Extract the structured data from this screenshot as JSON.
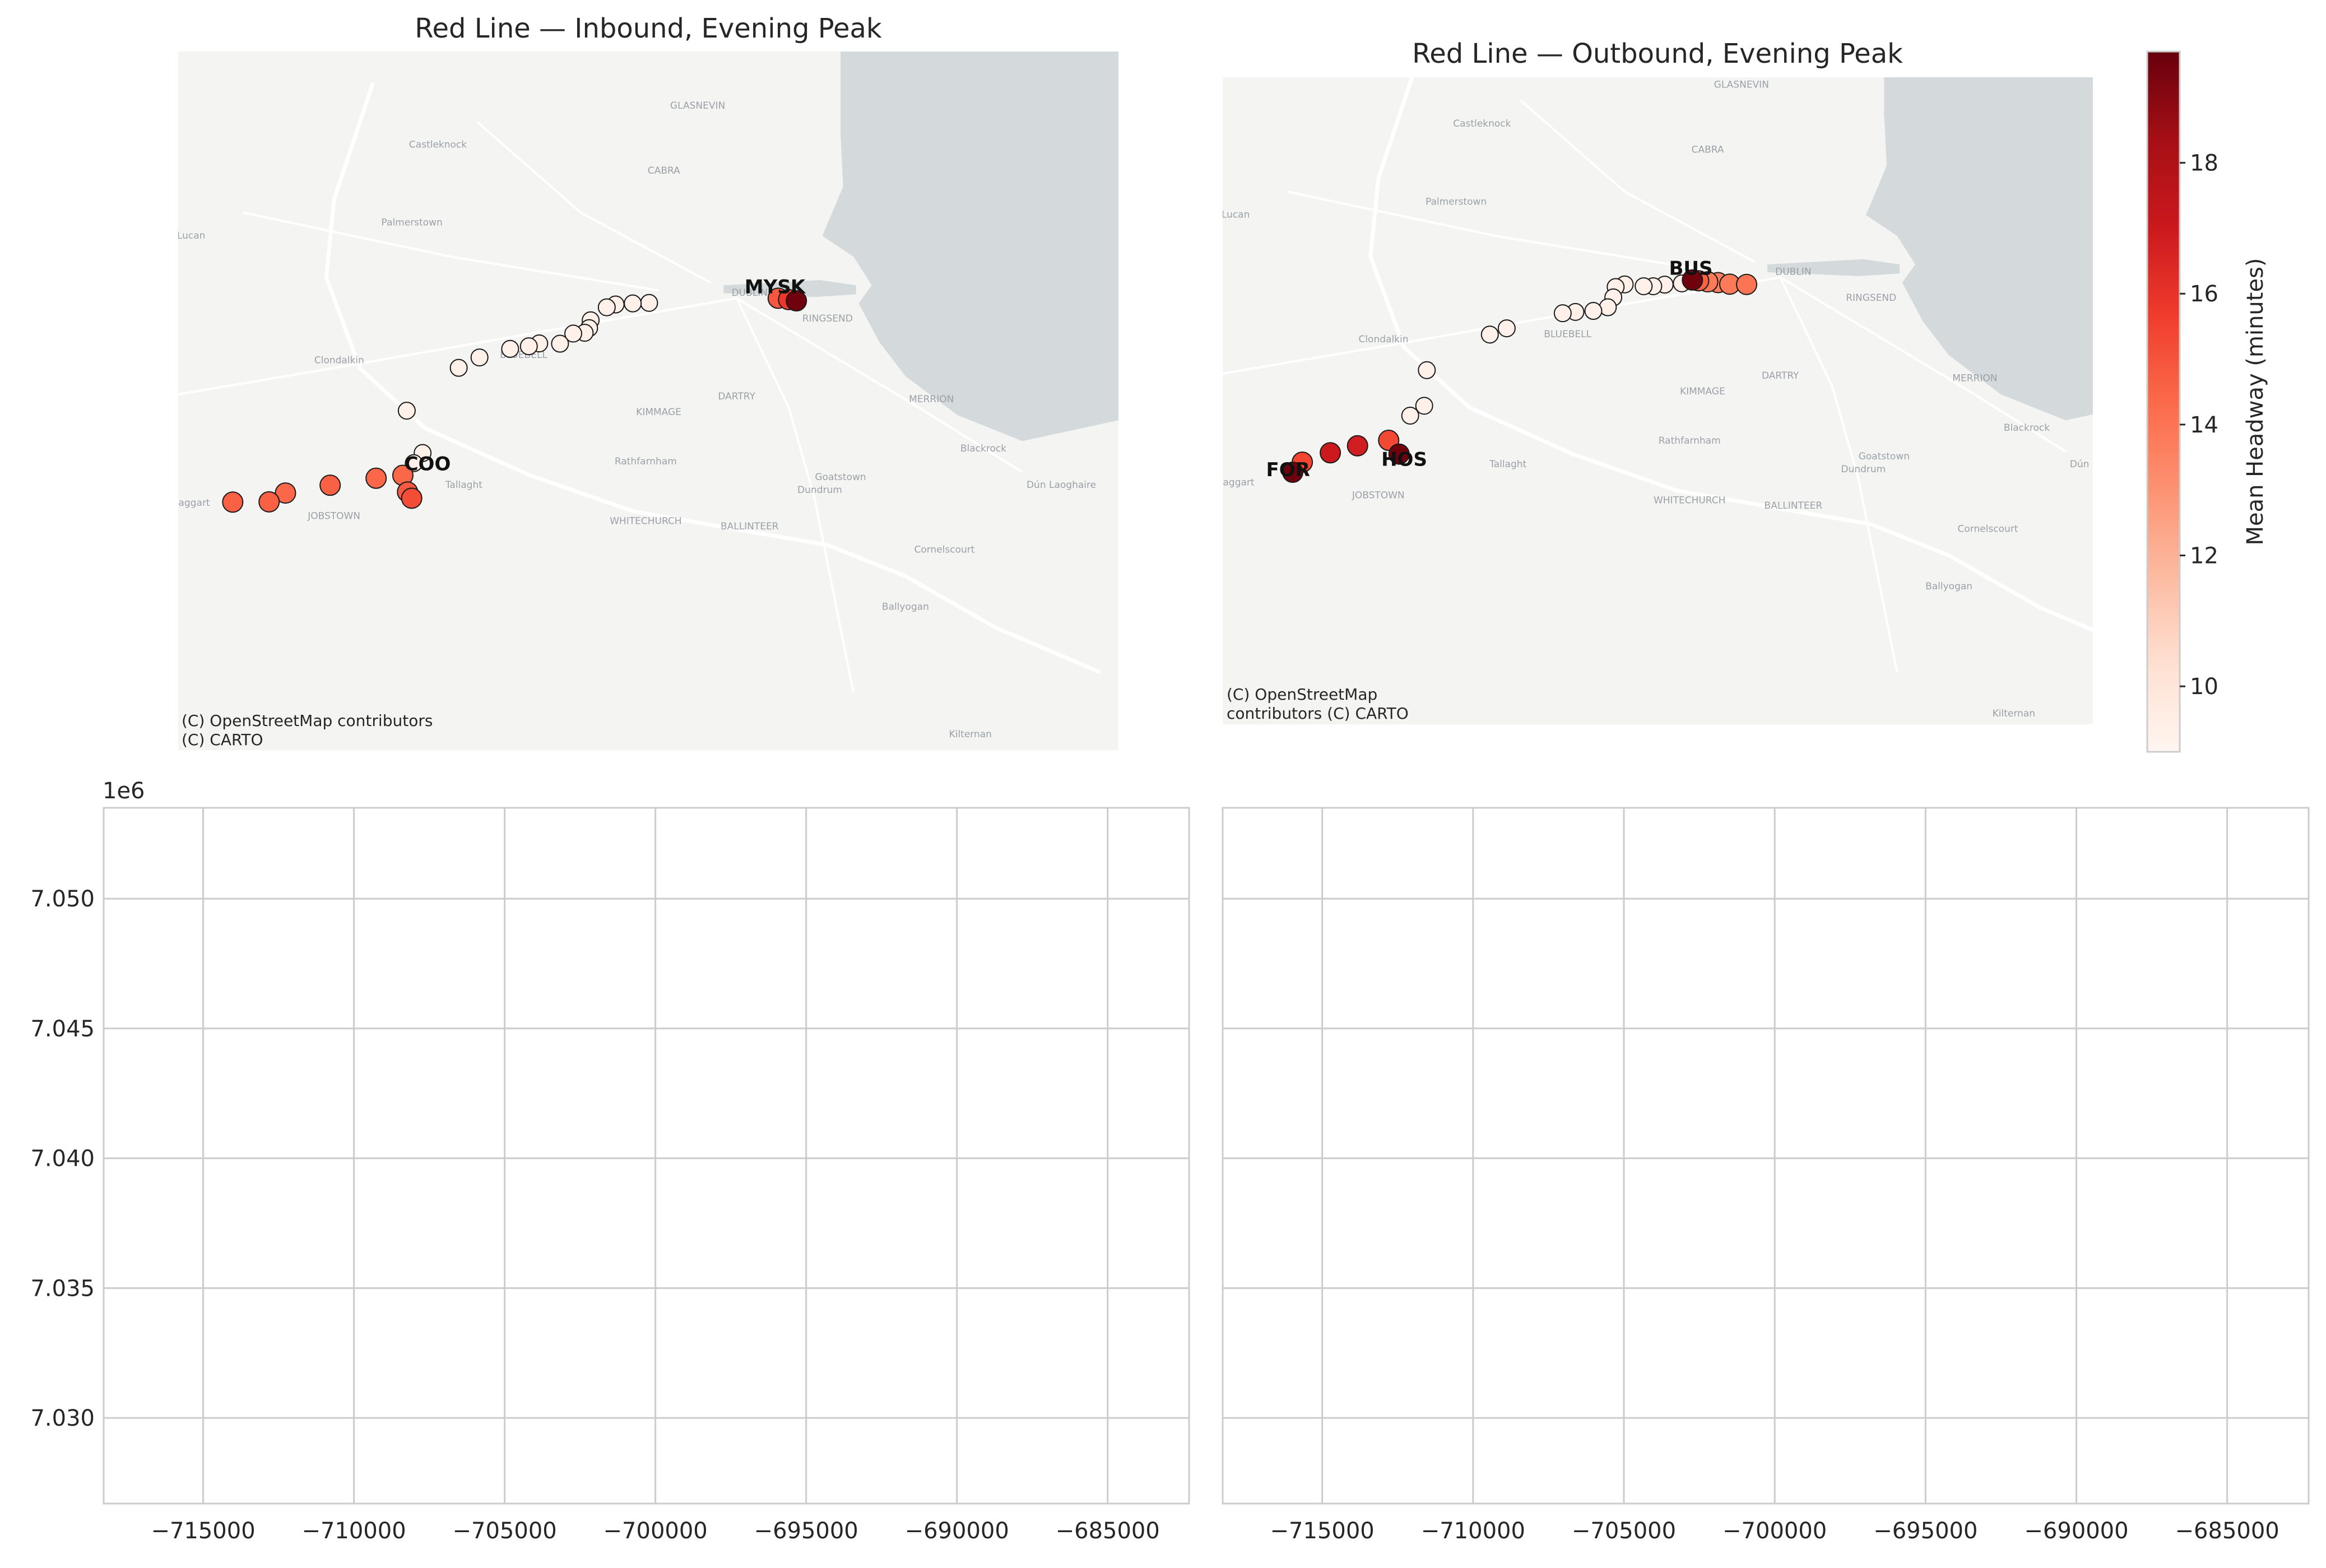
{
  "colors": {
    "map_bg": "#f4f5f3",
    "water": "#d4d9dc",
    "road": "#ffffff",
    "grid": "#cccccc",
    "headway_low": "#fff5f0",
    "headway_high": "#67000d"
  },
  "basemap": {
    "places": [
      "GLASNEVIN",
      "Castleknock",
      "CABRA",
      "Palmerstown",
      "Lucan",
      "DUBLIN",
      "RINGSEND",
      "Clondalkin",
      "KIMMAGE",
      "DARTRY",
      "MERRION",
      "BLUEBELL",
      "Rathfarnham",
      "Blackrock",
      "Goatstown",
      "Dún Laoghaire",
      "Tallaght",
      "Dundrum",
      "Saggart",
      "JOBSTOWN",
      "WHITECHURCH",
      "BALLINTEER",
      "Cornelscourt",
      "Ballyogan",
      "Kilternan"
    ]
  },
  "chart_data": [
    {
      "type": "scatter",
      "title": "Red Line — Inbound, Evening Peak",
      "attribution": [
        "(C) OpenStreetMap contributors",
        "(C) CARTO"
      ],
      "colorscale": "Reds",
      "labels": [
        {
          "text": "MYS",
          "x": -695800,
          "y": 7045390
        },
        {
          "text": "K",
          "x": -694640,
          "y": 7045390
        },
        {
          "text": "COO",
          "x": -708900,
          "y": 7038580
        }
      ],
      "points": [
        {
          "x": -700370,
          "y": 7045020,
          "headway": 9.3
        },
        {
          "x": -701000,
          "y": 7045000,
          "headway": 9.3
        },
        {
          "x": -701660,
          "y": 7044960,
          "headway": 9.3
        },
        {
          "x": -702000,
          "y": 7044850,
          "headway": 9.3
        },
        {
          "x": -702620,
          "y": 7044350,
          "headway": 9.3
        },
        {
          "x": -702680,
          "y": 7044050,
          "headway": 9.3
        },
        {
          "x": -702850,
          "y": 7043870,
          "headway": 9.3
        },
        {
          "x": -703290,
          "y": 7043840,
          "headway": 9.3
        },
        {
          "x": -703800,
          "y": 7043450,
          "headway": 9.3
        },
        {
          "x": -704600,
          "y": 7043460,
          "headway": 9.3
        },
        {
          "x": -705000,
          "y": 7043350,
          "headway": 9.3
        },
        {
          "x": -705720,
          "y": 7043250,
          "headway": 9.3
        },
        {
          "x": -706900,
          "y": 7042920,
          "headway": 9.3
        },
        {
          "x": -707700,
          "y": 7042520,
          "headway": 9.3
        },
        {
          "x": -709700,
          "y": 7040870,
          "headway": 9.3
        },
        {
          "x": -709090,
          "y": 7039240,
          "headway": 9.3
        },
        {
          "x": -709430,
          "y": 7038850,
          "headway": 9.3
        },
        {
          "x": -709850,
          "y": 7038380,
          "headway": 14.4
        },
        {
          "x": -710880,
          "y": 7038270,
          "headway": 14.4
        },
        {
          "x": -712650,
          "y": 7038000,
          "headway": 14.6
        },
        {
          "x": -714370,
          "y": 7037700,
          "headway": 14.4
        },
        {
          "x": -715000,
          "y": 7037360,
          "headway": 14.6
        },
        {
          "x": -716400,
          "y": 7037350,
          "headway": 14.6
        },
        {
          "x": -709670,
          "y": 7037740,
          "headway": 14.8
        },
        {
          "x": -709510,
          "y": 7037500,
          "headway": 15.2
        },
        {
          "x": -695400,
          "y": 7045200,
          "headway": 14.9
        },
        {
          "x": -695000,
          "y": 7045150,
          "headway": 15.8
        },
        {
          "x": -694700,
          "y": 7045100,
          "headway": 19.5
        }
      ]
    },
    {
      "type": "scatter",
      "title": "Red Line — Outbound, Evening Peak",
      "attribution": [
        "(C) OpenStreetMap contributors",
        "(C) CARTO"
      ],
      "colorscale": "Reds",
      "labels": [
        {
          "text": "BUS",
          "x": -700450,
          "y": 7045300
        },
        {
          "text": "FOR",
          "x": -715980,
          "y": 7037550
        },
        {
          "text": "HOS",
          "x": -711500,
          "y": 7037950
        }
      ],
      "points": [
        {
          "x": -698300,
          "y": 7044930,
          "headway": 14.0
        },
        {
          "x": -698950,
          "y": 7044940,
          "headway": 13.8
        },
        {
          "x": -699400,
          "y": 7045000,
          "headway": 13.6
        },
        {
          "x": -699800,
          "y": 7045030,
          "headway": 13.8
        },
        {
          "x": -700150,
          "y": 7045070,
          "headway": 14.6
        },
        {
          "x": -700390,
          "y": 7045100,
          "headway": 19.5
        },
        {
          "x": -700800,
          "y": 7044970,
          "headway": 9.3
        },
        {
          "x": -701460,
          "y": 7044920,
          "headway": 9.3
        },
        {
          "x": -701900,
          "y": 7044860,
          "headway": 9.3
        },
        {
          "x": -702270,
          "y": 7044860,
          "headway": 9.3
        },
        {
          "x": -703000,
          "y": 7044930,
          "headway": 9.3
        },
        {
          "x": -703350,
          "y": 7044830,
          "headway": 9.3
        },
        {
          "x": -703440,
          "y": 7044430,
          "headway": 9.3
        },
        {
          "x": -703650,
          "y": 7044050,
          "headway": 9.3
        },
        {
          "x": -704210,
          "y": 7043910,
          "headway": 9.3
        },
        {
          "x": -704900,
          "y": 7043870,
          "headway": 9.3
        },
        {
          "x": -705390,
          "y": 7043820,
          "headway": 9.3
        },
        {
          "x": -707550,
          "y": 7043240,
          "headway": 9.3
        },
        {
          "x": -708200,
          "y": 7043000,
          "headway": 9.3
        },
        {
          "x": -710630,
          "y": 7041630,
          "headway": 9.3
        },
        {
          "x": -711270,
          "y": 7039880,
          "headway": 9.3
        },
        {
          "x": -710730,
          "y": 7040260,
          "headway": 9.3
        },
        {
          "x": -712100,
          "y": 7038930,
          "headway": 15.3
        },
        {
          "x": -713300,
          "y": 7038720,
          "headway": 16.8
        },
        {
          "x": -714350,
          "y": 7038450,
          "headway": 17.0
        },
        {
          "x": -715430,
          "y": 7038090,
          "headway": 15.4
        },
        {
          "x": -715800,
          "y": 7037700,
          "headway": 19.5
        },
        {
          "x": -711700,
          "y": 7038400,
          "headway": 19.5
        }
      ]
    },
    {
      "type": "scatter",
      "title": "",
      "x_ticks": [
        "−715000",
        "−710000",
        "−705000",
        "−700000",
        "−695000",
        "−690000",
        "−685000"
      ],
      "y_ticks": [
        "7.050",
        "7.045",
        "7.040",
        "7.035",
        "7.030"
      ],
      "y_offset": "1e6",
      "xlim": [
        -718300,
        -682300
      ],
      "ylim": [
        7026700,
        7053500
      ],
      "grid": true,
      "points": []
    },
    {
      "type": "scatter",
      "title": "",
      "x_ticks": [
        "−715000",
        "−710000",
        "−705000",
        "−700000",
        "−695000",
        "−690000",
        "−685000"
      ],
      "xlim": [
        -718300,
        -682300
      ],
      "ylim": [
        7026700,
        7053500
      ],
      "grid": true,
      "points": []
    }
  ],
  "colorbar": {
    "label": "Mean Headway (minutes)",
    "range": [
      9.0,
      19.7
    ],
    "ticks": [
      "10",
      "12",
      "14",
      "16",
      "18"
    ]
  }
}
